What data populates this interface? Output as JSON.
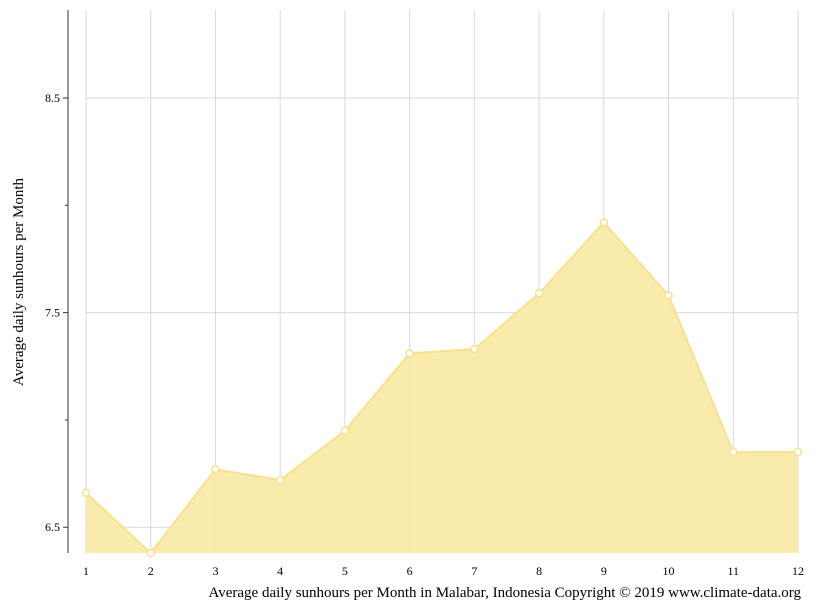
{
  "chart_data": {
    "type": "area",
    "title": "",
    "xlabel": "Average daily sunhours per Month in Malabar, Indonesia Copyright © 2019 www.climate-data.org",
    "ylabel": "Average daily sunhours per Month",
    "categories": [
      "1",
      "2",
      "3",
      "4",
      "5",
      "6",
      "7",
      "8",
      "9",
      "10",
      "11",
      "12"
    ],
    "series": [
      {
        "name": "",
        "values": [
          6.66,
          6.38,
          6.77,
          6.72,
          6.95,
          7.31,
          7.33,
          7.59,
          7.92,
          7.58,
          6.85,
          6.85
        ]
      }
    ],
    "y_ticks": [
      "6.5",
      "7.5",
      "8.5"
    ],
    "ylim": [
      6.38,
      8.91
    ],
    "grid": true,
    "legend": "none",
    "colors": {
      "area_fill": "#f8e9a5",
      "line": "#f7e18d",
      "marker_fill": "#ffffff",
      "grid": "#d9d9d9",
      "axis": "#333333"
    }
  }
}
